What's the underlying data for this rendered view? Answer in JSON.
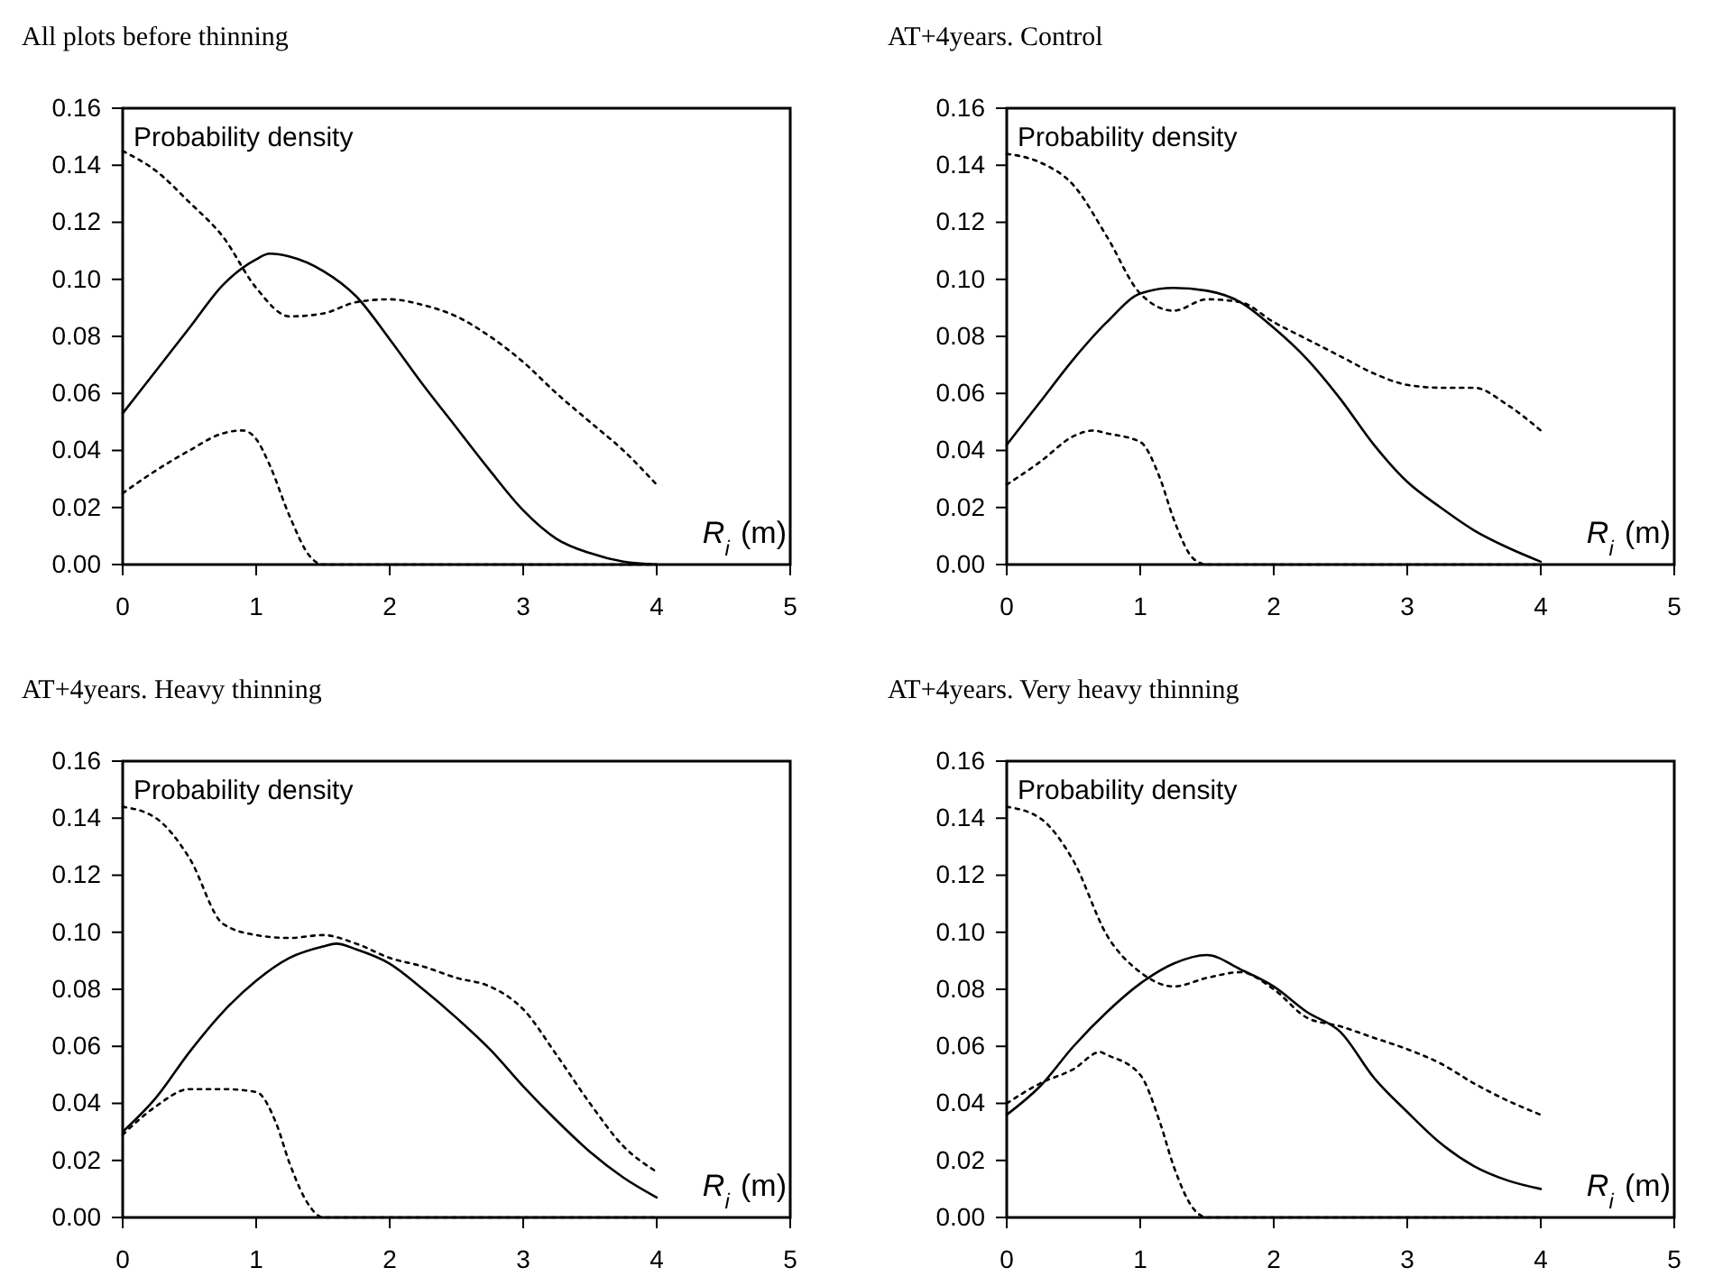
{
  "chart_data": [
    {
      "type": "line",
      "title": "All plots before thinning",
      "ylabel": "Probability density",
      "xlabel": "R$_{i}$ (m)",
      "xlim": [
        0,
        5
      ],
      "ylim": [
        0,
        0.16
      ],
      "xticks": [
        0,
        1,
        2,
        3,
        4,
        5
      ],
      "yticks": [
        {
          "value": 0,
          "label": "0.00"
        },
        {
          "value": 0.02,
          "label": "0.02"
        },
        {
          "value": 0.04,
          "label": "0.04"
        },
        {
          "value": 0.06,
          "label": "0.06"
        },
        {
          "value": 0.08,
          "label": "0.08"
        },
        {
          "value": 0.1,
          "label": "0.10"
        },
        {
          "value": 0.12,
          "label": "0.12"
        },
        {
          "value": 0.14,
          "label": "0.14"
        },
        {
          "value": 0.16,
          "label": "0.16"
        }
      ],
      "grid": false,
      "series": [
        {
          "color": "#000000",
          "line_style": "solid",
          "x": [
            0,
            0.25,
            0.5,
            0.75,
            1,
            1.1,
            1.25,
            1.5,
            1.75,
            2,
            2.25,
            2.5,
            2.75,
            3,
            3.25,
            3.5,
            3.75,
            4
          ],
          "values": [
            0.053,
            0.068,
            0.083,
            0.098,
            0.107,
            0.109,
            0.108,
            0.103,
            0.094,
            0.079,
            0.063,
            0.048,
            0.033,
            0.019,
            0.009,
            0.004,
            0.001,
            0
          ]
        },
        {
          "color": "#000000",
          "line_style": "dotted",
          "x": [
            0,
            0.25,
            0.5,
            0.75,
            1,
            1.25,
            1.5,
            1.75,
            2,
            2.25,
            2.5,
            2.75,
            3,
            3.25,
            3.5,
            3.75,
            4
          ],
          "values": [
            0.145,
            0.138,
            0.127,
            0.115,
            0.097,
            0.087,
            0.088,
            0.092,
            0.093,
            0.091,
            0.087,
            0.08,
            0.071,
            0.06,
            0.05,
            0.04,
            0.028
          ]
        },
        {
          "color": "#000000",
          "line_style": "dotted",
          "x": [
            0,
            0.25,
            0.5,
            0.75,
            0.9,
            1,
            1.1,
            1.25,
            1.4,
            1.5,
            2,
            3,
            4
          ],
          "values": [
            0.025,
            0.033,
            0.04,
            0.046,
            0.047,
            0.044,
            0.035,
            0.017,
            0.003,
            0,
            0,
            0,
            0
          ]
        }
      ]
    },
    {
      "type": "line",
      "title": "AT+4years. Control",
      "ylabel": "Probability density",
      "xlabel": "R$_{i}$ (m)",
      "xlim": [
        0,
        5
      ],
      "ylim": [
        0,
        0.16
      ],
      "xticks": [
        0,
        1,
        2,
        3,
        4,
        5
      ],
      "yticks": [
        {
          "value": 0,
          "label": "0.00"
        },
        {
          "value": 0.02,
          "label": "0.02"
        },
        {
          "value": 0.04,
          "label": "0.04"
        },
        {
          "value": 0.06,
          "label": "0.06"
        },
        {
          "value": 0.08,
          "label": "0.08"
        },
        {
          "value": 0.1,
          "label": "0.10"
        },
        {
          "value": 0.12,
          "label": "0.12"
        },
        {
          "value": 0.14,
          "label": "0.14"
        },
        {
          "value": 0.16,
          "label": "0.16"
        }
      ],
      "grid": false,
      "series": [
        {
          "color": "#000000",
          "line_style": "solid",
          "x": [
            0,
            0.25,
            0.5,
            0.75,
            1,
            1.25,
            1.5,
            1.75,
            2,
            2.25,
            2.5,
            2.75,
            3,
            3.25,
            3.5,
            3.75,
            4
          ],
          "values": [
            0.042,
            0.057,
            0.072,
            0.085,
            0.095,
            0.097,
            0.096,
            0.092,
            0.083,
            0.072,
            0.058,
            0.042,
            0.029,
            0.02,
            0.012,
            0.006,
            0.001
          ]
        },
        {
          "color": "#000000",
          "line_style": "dotted",
          "x": [
            0,
            0.25,
            0.5,
            0.75,
            1,
            1.25,
            1.5,
            1.75,
            2,
            2.25,
            2.5,
            2.75,
            3,
            3.25,
            3.5,
            3.75,
            4
          ],
          "values": [
            0.144,
            0.141,
            0.133,
            0.115,
            0.095,
            0.089,
            0.093,
            0.092,
            0.085,
            0.079,
            0.073,
            0.067,
            0.063,
            0.062,
            0.062,
            0.056,
            0.047
          ]
        },
        {
          "color": "#000000",
          "line_style": "dotted",
          "x": [
            0,
            0.25,
            0.5,
            0.65,
            0.75,
            1,
            1.15,
            1.25,
            1.4,
            1.5,
            2,
            3,
            4
          ],
          "values": [
            0.028,
            0.036,
            0.045,
            0.047,
            0.046,
            0.043,
            0.03,
            0.016,
            0.002,
            0,
            0,
            0,
            0
          ]
        }
      ]
    },
    {
      "type": "line",
      "title": "AT+4years. Heavy thinning",
      "ylabel": "Probability density",
      "xlabel": "R$_{i}$ (m)",
      "xlim": [
        0,
        5
      ],
      "ylim": [
        0,
        0.16
      ],
      "xticks": [
        0,
        1,
        2,
        3,
        4,
        5
      ],
      "yticks": [
        {
          "value": 0,
          "label": "0.00"
        },
        {
          "value": 0.02,
          "label": "0.02"
        },
        {
          "value": 0.04,
          "label": "0.04"
        },
        {
          "value": 0.06,
          "label": "0.06"
        },
        {
          "value": 0.08,
          "label": "0.08"
        },
        {
          "value": 0.1,
          "label": "0.10"
        },
        {
          "value": 0.12,
          "label": "0.12"
        },
        {
          "value": 0.14,
          "label": "0.14"
        },
        {
          "value": 0.16,
          "label": "0.16"
        }
      ],
      "grid": false,
      "series": [
        {
          "color": "#000000",
          "line_style": "solid",
          "x": [
            0,
            0.25,
            0.5,
            0.75,
            1,
            1.25,
            1.5,
            1.6,
            1.75,
            2,
            2.25,
            2.5,
            2.75,
            3,
            3.25,
            3.5,
            3.75,
            4
          ],
          "values": [
            0.03,
            0.042,
            0.058,
            0.072,
            0.083,
            0.091,
            0.095,
            0.096,
            0.094,
            0.089,
            0.08,
            0.07,
            0.059,
            0.046,
            0.034,
            0.023,
            0.014,
            0.007
          ]
        },
        {
          "color": "#000000",
          "line_style": "dotted",
          "x": [
            0,
            0.25,
            0.5,
            0.75,
            1,
            1.25,
            1.5,
            1.75,
            2,
            2.25,
            2.5,
            2.75,
            3,
            3.25,
            3.5,
            3.75,
            4
          ],
          "values": [
            0.144,
            0.14,
            0.126,
            0.103,
            0.099,
            0.098,
            0.099,
            0.096,
            0.091,
            0.088,
            0.084,
            0.081,
            0.073,
            0.057,
            0.04,
            0.025,
            0.016
          ]
        },
        {
          "color": "#000000",
          "line_style": "dotted",
          "x": [
            0,
            0.25,
            0.5,
            0.75,
            1,
            1.15,
            1.25,
            1.4,
            1.5,
            2,
            3,
            4
          ],
          "values": [
            0.029,
            0.039,
            0.045,
            0.045,
            0.044,
            0.033,
            0.019,
            0.004,
            0,
            0,
            0,
            0
          ]
        }
      ]
    },
    {
      "type": "line",
      "title": "AT+4years. Very heavy thinning",
      "ylabel": "Probability density",
      "xlabel": "R$_{i}$ (m)",
      "xlim": [
        0,
        5
      ],
      "ylim": [
        0,
        0.16
      ],
      "xticks": [
        0,
        1,
        2,
        3,
        4,
        5
      ],
      "yticks": [
        {
          "value": 0,
          "label": "0.00"
        },
        {
          "value": 0.02,
          "label": "0.02"
        },
        {
          "value": 0.04,
          "label": "0.04"
        },
        {
          "value": 0.06,
          "label": "0.06"
        },
        {
          "value": 0.08,
          "label": "0.08"
        },
        {
          "value": 0.1,
          "label": "0.10"
        },
        {
          "value": 0.12,
          "label": "0.12"
        },
        {
          "value": 0.14,
          "label": "0.14"
        },
        {
          "value": 0.16,
          "label": "0.16"
        }
      ],
      "grid": false,
      "series": [
        {
          "color": "#000000",
          "line_style": "solid",
          "x": [
            0,
            0.25,
            0.5,
            0.75,
            1,
            1.25,
            1.5,
            1.75,
            2,
            2.25,
            2.5,
            2.75,
            3,
            3.25,
            3.5,
            3.75,
            4
          ],
          "values": [
            0.036,
            0.046,
            0.06,
            0.072,
            0.082,
            0.089,
            0.092,
            0.087,
            0.081,
            0.072,
            0.065,
            0.049,
            0.037,
            0.026,
            0.018,
            0.013,
            0.01
          ]
        },
        {
          "color": "#000000",
          "line_style": "dotted",
          "x": [
            0,
            0.25,
            0.5,
            0.75,
            1,
            1.25,
            1.5,
            1.75,
            2,
            2.25,
            2.5,
            2.75,
            3,
            3.25,
            3.5,
            3.75,
            4
          ],
          "values": [
            0.144,
            0.14,
            0.125,
            0.099,
            0.086,
            0.081,
            0.084,
            0.086,
            0.08,
            0.07,
            0.067,
            0.063,
            0.059,
            0.054,
            0.047,
            0.041,
            0.036
          ]
        },
        {
          "color": "#000000",
          "line_style": "dotted",
          "x": [
            0,
            0.25,
            0.5,
            0.7,
            0.75,
            1,
            1.15,
            1.25,
            1.4,
            1.5,
            2,
            3,
            4
          ],
          "values": [
            0.04,
            0.047,
            0.052,
            0.058,
            0.057,
            0.05,
            0.033,
            0.018,
            0.003,
            0,
            0,
            0,
            0
          ]
        }
      ]
    }
  ]
}
